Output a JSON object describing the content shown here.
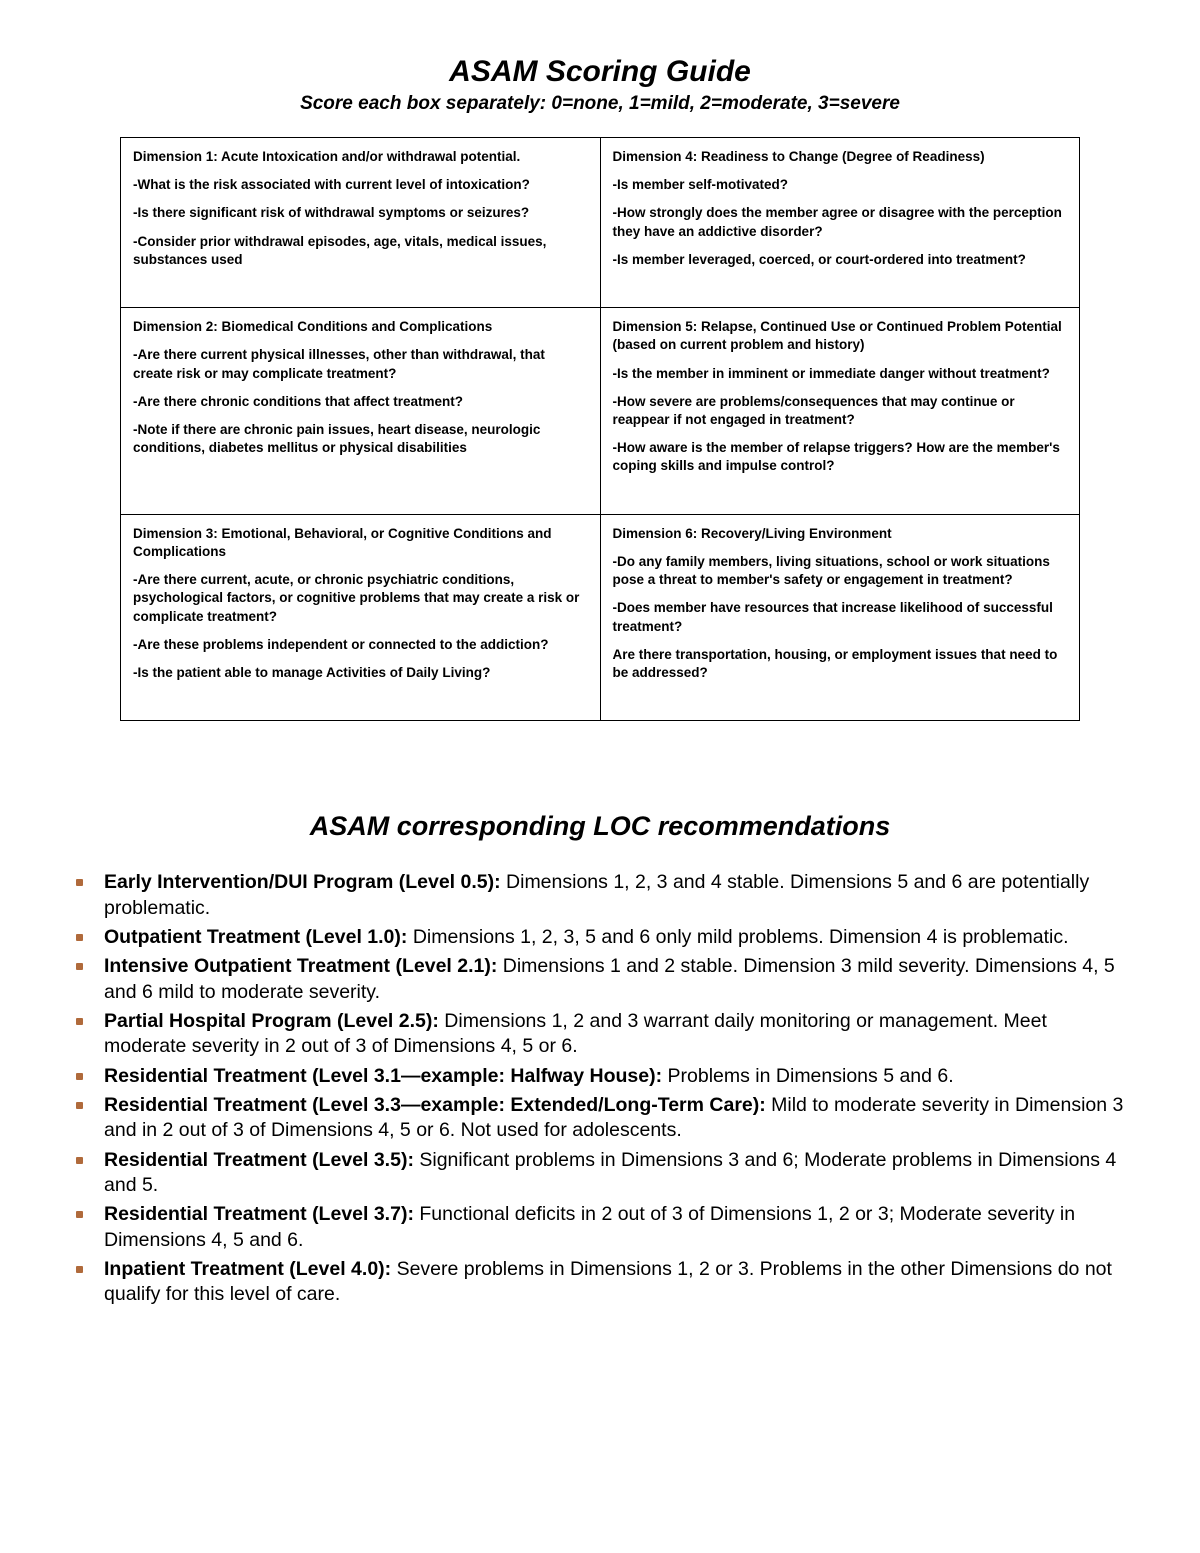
{
  "header": {
    "title": "ASAM Scoring Guide",
    "subtitle": "Score each box separately:  0=none, 1=mild, 2=moderate, 3=severe"
  },
  "dimensions": {
    "d1": {
      "title": "Dimension 1: Acute Intoxication and/or withdrawal potential.",
      "q1": "-What is the risk associated with current level of intoxication?",
      "q2": "-Is there significant risk of withdrawal symptoms or seizures?",
      "q3": "-Consider prior withdrawal episodes, age, vitals, medical issues, substances used"
    },
    "d4": {
      "title": "Dimension 4: Readiness to Change (Degree of Readiness)",
      "q1": "-Is member self-motivated?",
      "q2": "-How strongly does the member agree or disagree with the perception they have an addictive disorder?",
      "q3": "-Is member leveraged, coerced, or court-ordered into treatment?"
    },
    "d2": {
      "title": "Dimension 2: Biomedical Conditions and Complications",
      "q1": "-Are there current physical illnesses, other than withdrawal, that create risk or may complicate treatment?",
      "q2": "-Are there chronic conditions that affect treatment?",
      "q3": "-Note if there are chronic pain issues, heart disease, neurologic conditions, diabetes mellitus or physical disabilities"
    },
    "d5": {
      "title": "Dimension 5: Relapse, Continued Use or Continued Problem Potential (based on current problem and history)",
      "q1": "-Is the member in imminent or immediate danger without treatment?",
      "q2": "-How severe are problems/consequences that may continue or reappear if not engaged in treatment?",
      "q3": "-How aware is the member of relapse triggers?  How are the member's coping skills and impulse control?"
    },
    "d3": {
      "title": "Dimension 3:  Emotional, Behavioral, or Cognitive Conditions and Complications",
      "q1": "-Are there current, acute, or chronic psychiatric conditions, psychological factors, or cognitive problems that may create a risk or complicate treatment?",
      "q2": "-Are these problems independent or connected to the addiction?",
      "q3": "-Is the patient able to manage Activities of Daily Living?"
    },
    "d6": {
      "title": "Dimension 6:  Recovery/Living Environment",
      "q1": "-Do any family members, living situations, school or work situations pose a threat to member's safety or engagement in treatment?",
      "q2": "-Does member have resources that increase likelihood of successful treatment?",
      "q3": "Are there transportation, housing, or employment issues that need to be addressed?"
    }
  },
  "loc": {
    "heading": "ASAM corresponding LOC recommendations",
    "items": [
      {
        "label": "Early Intervention/DUI Program (Level 0.5):",
        "text": " Dimensions 1, 2, 3 and 4 stable.  Dimensions 5 and 6 are potentially problematic."
      },
      {
        "label": "Outpatient Treatment (Level 1.0):",
        "text": " Dimensions 1, 2, 3, 5 and 6 only mild problems.  Dimension 4 is problematic."
      },
      {
        "label": "Intensive Outpatient Treatment (Level 2.1):",
        "text": " Dimensions 1 and 2 stable.  Dimension 3 mild severity.  Dimensions 4, 5 and 6 mild to moderate severity."
      },
      {
        "label": "Partial Hospital Program (Level 2.5):",
        "text": " Dimensions 1, 2 and 3 warrant daily monitoring or management.  Meet moderate severity in 2 out of 3 of Dimensions 4, 5 or 6."
      },
      {
        "label": "Residential Treatment (Level 3.1—example: Halfway House):",
        "text": " Problems in Dimensions 5 and 6."
      },
      {
        "label": "Residential Treatment (Level 3.3—example: Extended/Long-Term Care):",
        "text": " Mild to moderate severity in Dimension 3 and in 2 out of 3 of Dimensions 4, 5 or 6.  Not used for adolescents."
      },
      {
        "label": "Residential Treatment (Level 3.5):",
        "text": " Significant problems in Dimensions 3 and 6; Moderate problems in Dimensions 4 and 5."
      },
      {
        "label": "Residential Treatment (Level 3.7):",
        "text": " Functional deficits in 2 out of 3 of Dimensions 1, 2 or 3; Moderate severity in Dimensions 4, 5 and 6."
      },
      {
        "label": "Inpatient Treatment (Level 4.0):",
        "text": " Severe problems in Dimensions 1, 2 or 3.  Problems in the other Dimensions do not qualify for this level of care."
      }
    ]
  },
  "colors": {
    "text": "#000000",
    "background": "#ffffff",
    "table_border": "#000000",
    "bullet": "#b06a3b"
  },
  "typography": {
    "title_fontsize": 30,
    "subtitle_fontsize": 19,
    "cell_fontsize": 13.5,
    "section_title_fontsize": 27,
    "loc_item_fontsize": 19.5,
    "font_family": "Arial"
  }
}
